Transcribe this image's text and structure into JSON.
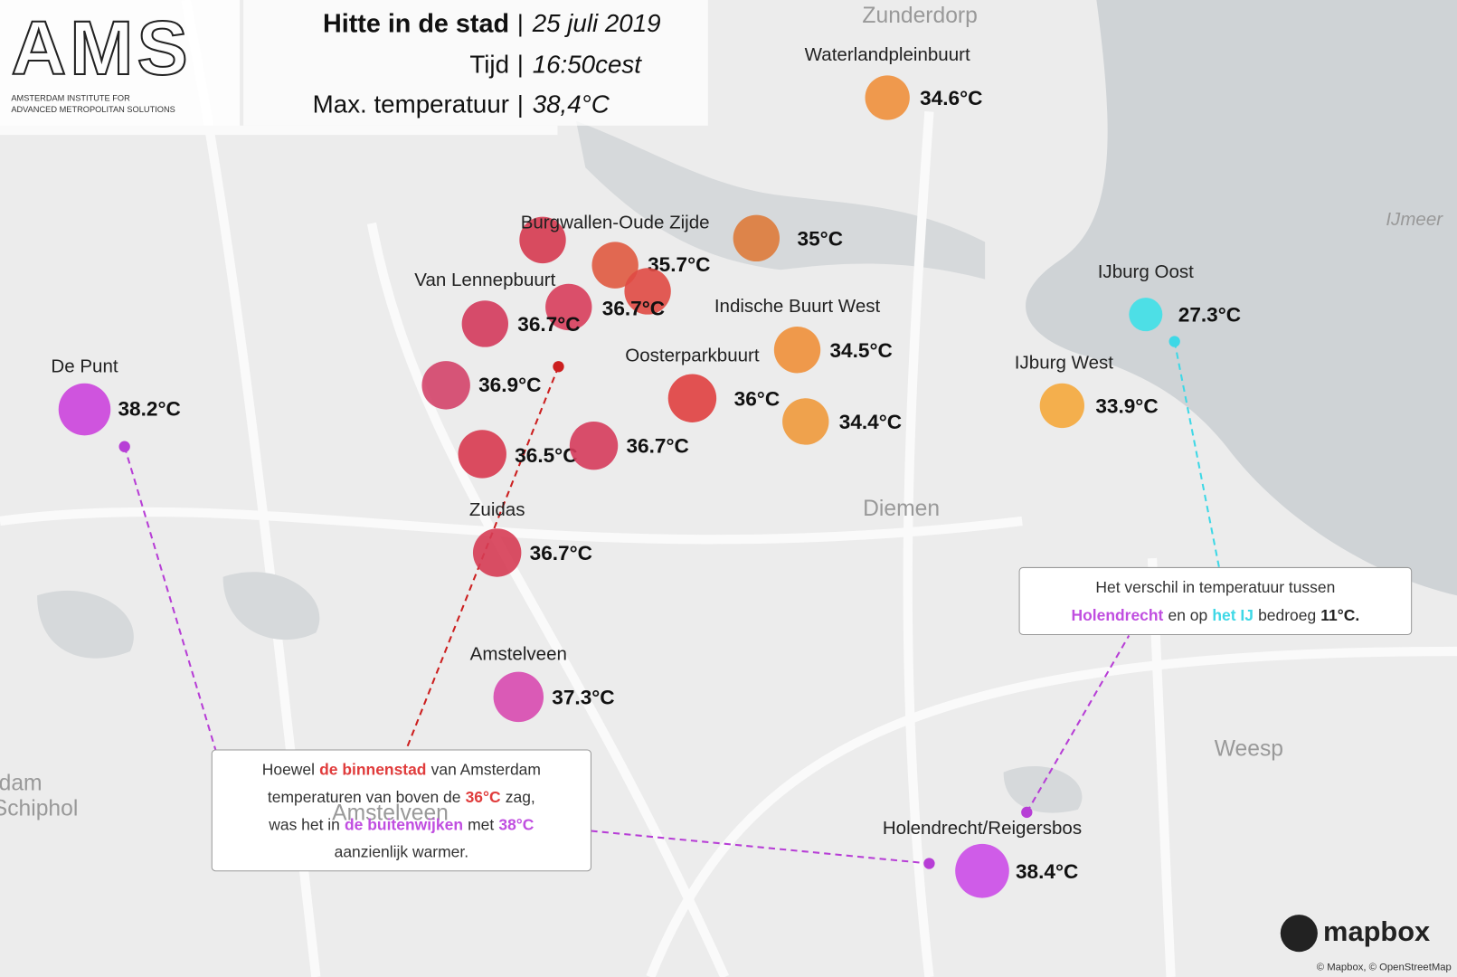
{
  "header": {
    "logo": "AMS",
    "logo_line1": "AMSTERDAM INSTITUTE FOR",
    "logo_line2": "ADVANCED METROPOLITAN SOLUTIONS",
    "title": "Hitte in de stad",
    "separator": "|",
    "date": "25 juli 2019",
    "time_label": "Tijd",
    "time": "16:50cest",
    "max_label": "Max. temperatuur",
    "max": "38,4°C"
  },
  "places": [
    "Zunderdorp",
    "Diemen",
    "Weesp",
    "IJmeer",
    "rdam",
    "Schiphol",
    "Amstelveen"
  ],
  "stations": [
    {
      "name": "Waterlandpleinbuurt",
      "temp": "34.6°C",
      "color": "#f0903c"
    },
    {
      "temp": "35°C",
      "color": "#de7a3a"
    },
    {
      "name": "Burgwallen-Oude Zijde",
      "color": "#d63a50"
    },
    {
      "temp": "35.7°C",
      "color": "#e05a40"
    },
    {
      "temp": "36.7°C",
      "color": "#e04a44"
    },
    {
      "name": "Van Lennepbuurt",
      "color": "#d83e5c"
    },
    {
      "temp": "36.7°C",
      "color": "#d43a5c"
    },
    {
      "temp": "36.9°C",
      "color": "#d4446a"
    },
    {
      "name": "De Punt",
      "temp": "38.2°C",
      "color": "#cc44dd"
    },
    {
      "name": "Indische Buurt West",
      "temp": "34.5°C",
      "color": "#f0903a"
    },
    {
      "name": "Oosterparkbuurt",
      "temp": "36°C",
      "color": "#e04040"
    },
    {
      "temp": "34.4°C",
      "color": "#f09a3c"
    },
    {
      "temp": "36.5°C",
      "color": "#d83a50"
    },
    {
      "temp": "36.7°C",
      "color": "#d63c5c"
    },
    {
      "name": "Zuidas",
      "temp": "36.7°C",
      "color": "#d63c54"
    },
    {
      "name": "Amstelveen",
      "temp": "37.3°C",
      "color": "#d84ab0"
    },
    {
      "name": "IJburg Oost",
      "temp": "27.3°C",
      "color": "#3ee0e8"
    },
    {
      "name": "IJburg West",
      "temp": "33.9°C",
      "color": "#f5a83c"
    },
    {
      "name": "Holendrecht/Reigersbos",
      "temp": "38.4°C",
      "color": "#cc4de8"
    }
  ],
  "callouts": [
    {
      "lines": [
        [
          {
            "text": "Hoewel"
          },
          {
            "text": "de binnenstad",
            "color": "#e03c3c"
          },
          {
            "text": "van Amsterdam"
          }
        ],
        [
          {
            "text": "temperaturen van boven de"
          },
          {
            "text": "36°C",
            "color": "#e03c3c"
          },
          {
            "text": "zag,"
          }
        ],
        [
          {
            "text": "was het in"
          },
          {
            "text": "de buitenwijken",
            "color": "#c04ee0"
          },
          {
            "text": "met"
          },
          {
            "text": "38°C",
            "color": "#c04ee0"
          }
        ],
        [
          {
            "text": "aanzienlijk warmer."
          }
        ]
      ]
    },
    {
      "lines": [
        [
          {
            "text": "Het verschil in temperatuur tussen"
          }
        ],
        [
          {
            "text": "Holendrecht",
            "color": "#c04ee0"
          },
          {
            "text": "en op"
          },
          {
            "text": "het IJ",
            "color": "#3ed8e6"
          },
          {
            "text": "bedroeg"
          },
          {
            "text": "11°C.",
            "color": "#222222"
          }
        ]
      ]
    }
  ],
  "attribution": {
    "brand": "mapbox",
    "credits": "© Mapbox, © OpenStreetMap"
  }
}
